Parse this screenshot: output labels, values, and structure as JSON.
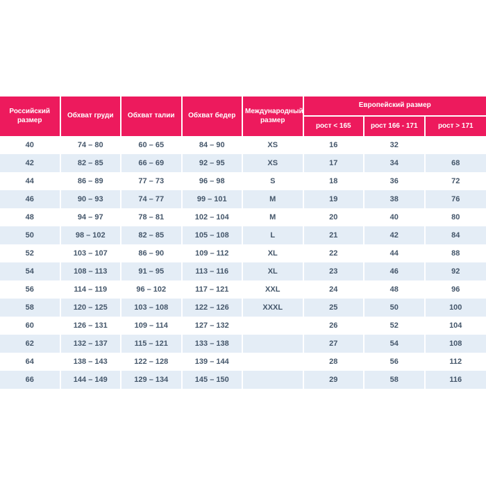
{
  "table": {
    "title_semantic": "Таблица размеров",
    "header": {
      "russian_size": "Российский размер",
      "chest": "Обхват груди",
      "waist": "Обхват талии",
      "hips": "Обхват бедер",
      "international_size": "Международный размер",
      "european_size": "Европейский размер",
      "height_lt": "рост < 165",
      "height_mid": "рост 166 - 171",
      "height_gt": "рост > 171"
    },
    "rows": [
      [
        "40",
        "74 – 80",
        "60 – 65",
        "84 – 90",
        "XS",
        "16",
        "32",
        ""
      ],
      [
        "42",
        "82 – 85",
        "66 – 69",
        "92 – 95",
        "XS",
        "17",
        "34",
        "68"
      ],
      [
        "44",
        "86 – 89",
        "77 – 73",
        "96 – 98",
        "S",
        "18",
        "36",
        "72"
      ],
      [
        "46",
        "90 – 93",
        "74 – 77",
        "99 – 101",
        "M",
        "19",
        "38",
        "76"
      ],
      [
        "48",
        "94 – 97",
        "78 – 81",
        "102 – 104",
        "M",
        "20",
        "40",
        "80"
      ],
      [
        "50",
        "98 – 102",
        "82 – 85",
        "105 – 108",
        "L",
        "21",
        "42",
        "84"
      ],
      [
        "52",
        "103 – 107",
        "86 – 90",
        "109 – 112",
        "XL",
        "22",
        "44",
        "88"
      ],
      [
        "54",
        "108 – 113",
        "91 – 95",
        "113 – 116",
        "XL",
        "23",
        "46",
        "92"
      ],
      [
        "56",
        "114 – 119",
        "96 – 102",
        "117 – 121",
        "XXL",
        "24",
        "48",
        "96"
      ],
      [
        "58",
        "120 – 125",
        "103 – 108",
        "122 – 126",
        "XXXL",
        "25",
        "50",
        "100"
      ],
      [
        "60",
        "126 – 131",
        "109 – 114",
        "127 – 132",
        "",
        "26",
        "52",
        "104"
      ],
      [
        "62",
        "132 – 137",
        "115 – 121",
        "133 – 138",
        "",
        "27",
        "54",
        "108"
      ],
      [
        "64",
        "138 – 143",
        "122 – 128",
        "139 – 144",
        "",
        "28",
        "56",
        "112"
      ],
      [
        "66",
        "144 – 149",
        "129 – 134",
        "145 – 150",
        "",
        "29",
        "58",
        "116"
      ]
    ],
    "colors": {
      "header_bg": "#ED1A5D",
      "header_text": "#FFFFFF",
      "row_bg": "#FFFFFF",
      "row_alt_bg": "#E4EDF6",
      "cell_text": "#44566A"
    }
  }
}
